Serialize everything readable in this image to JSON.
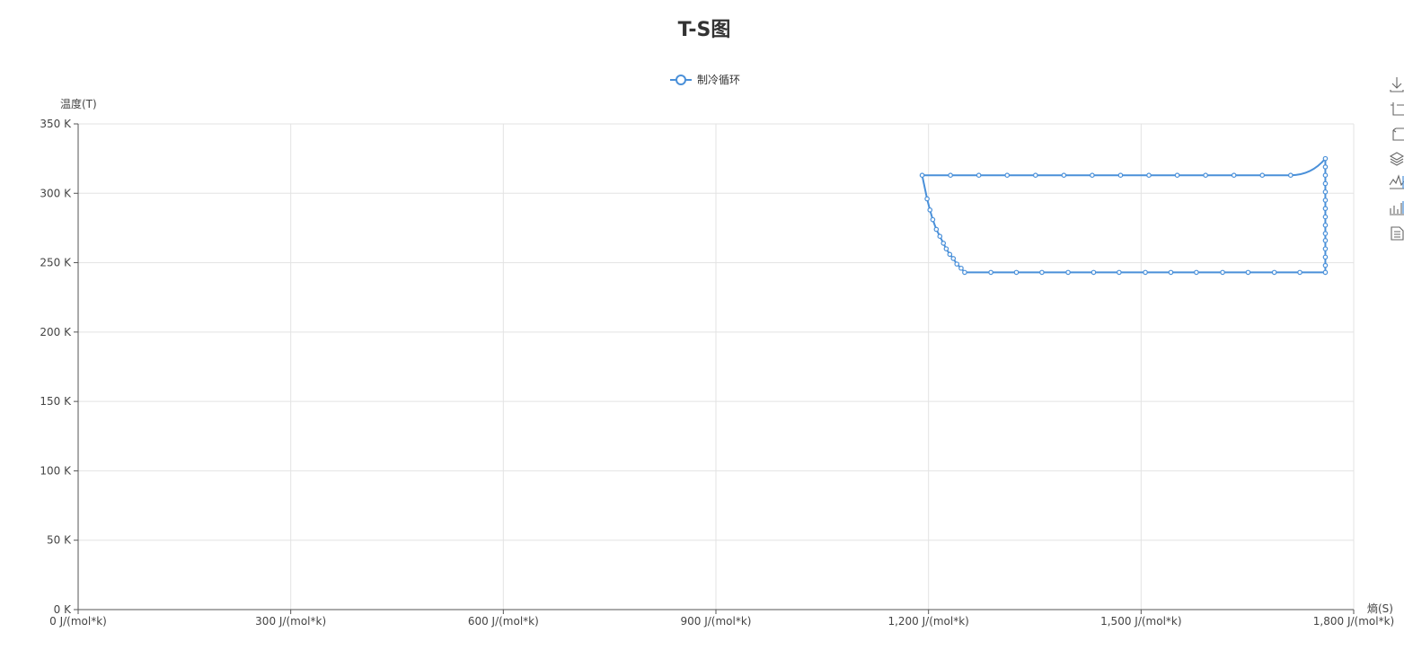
{
  "chart_data": {
    "type": "line",
    "title": "T-S图",
    "xlabel": "熵(S)",
    "ylabel": "温度(T)",
    "xlim": [
      0,
      1800
    ],
    "ylim": [
      0,
      350
    ],
    "x_ticks": [
      0,
      300,
      600,
      900,
      1200,
      1500,
      1800
    ],
    "y_ticks": [
      0,
      50,
      100,
      150,
      200,
      250,
      300,
      350
    ],
    "x_tick_labels": [
      "0 J/(mol*k)",
      "300 J/(mol*k)",
      "600 J/(mol*k)",
      "900 J/(mol*k)",
      "1,200 J/(mol*k)",
      "1,500 J/(mol*k)",
      "1,800 J/(mol*k)"
    ],
    "y_tick_labels": [
      "0 K",
      "50 K",
      "100 K",
      "150 K",
      "200 K",
      "250 K",
      "300 K",
      "350 K"
    ],
    "grid": true,
    "legend_position": "top-center",
    "series": [
      {
        "name": "制冷循环",
        "color": "#4a90d9",
        "points": [
          [
            1760,
            325
          ],
          [
            1760,
            319
          ],
          [
            1760,
            313
          ],
          [
            1760,
            307
          ],
          [
            1760,
            301
          ],
          [
            1760,
            295
          ],
          [
            1760,
            289
          ],
          [
            1760,
            283
          ],
          [
            1760,
            277
          ],
          [
            1760,
            271
          ],
          [
            1760,
            266
          ],
          [
            1760,
            260
          ],
          [
            1760,
            254
          ],
          [
            1760,
            248
          ],
          [
            1760,
            243
          ],
          [
            1724,
            243
          ],
          [
            1688,
            243
          ],
          [
            1651,
            243
          ],
          [
            1615,
            243
          ],
          [
            1578,
            243
          ],
          [
            1542,
            243
          ],
          [
            1506,
            243
          ],
          [
            1469,
            243
          ],
          [
            1433,
            243
          ],
          [
            1397,
            243
          ],
          [
            1360,
            243
          ],
          [
            1324,
            243
          ],
          [
            1288,
            243
          ],
          [
            1251,
            243
          ],
          [
            1246,
            246
          ],
          [
            1240,
            249
          ],
          [
            1235,
            253
          ],
          [
            1230,
            256
          ],
          [
            1225,
            260
          ],
          [
            1221,
            264
          ],
          [
            1216,
            269
          ],
          [
            1211,
            274
          ],
          [
            1206,
            281
          ],
          [
            1202,
            288
          ],
          [
            1198,
            296
          ],
          [
            1191,
            313
          ],
          [
            1231,
            313
          ],
          [
            1271,
            313
          ],
          [
            1311,
            313
          ],
          [
            1351,
            313
          ],
          [
            1391,
            313
          ],
          [
            1431,
            313
          ],
          [
            1471,
            313
          ],
          [
            1511,
            313
          ],
          [
            1551,
            313
          ],
          [
            1591,
            313
          ],
          [
            1631,
            313
          ],
          [
            1671,
            313
          ],
          [
            1711,
            313
          ],
          [
            1760,
            325
          ]
        ],
        "marker_indices": [
          0,
          1,
          2,
          3,
          4,
          5,
          6,
          7,
          8,
          9,
          10,
          11,
          12,
          13,
          14,
          15,
          16,
          17,
          18,
          19,
          20,
          21,
          22,
          23,
          24,
          25,
          26,
          27,
          28,
          29,
          30,
          31,
          32,
          33,
          34,
          35,
          36,
          37,
          38,
          39,
          40,
          41,
          42,
          43,
          44,
          45,
          46,
          47,
          48,
          49,
          50,
          51,
          52,
          53
        ]
      }
    ]
  },
  "toolbox": {
    "icons": [
      "download-icon",
      "zoom-icon",
      "zoom-reset-icon",
      "restore-icon",
      "line-chart-icon",
      "bar-chart-icon",
      "data-view-icon"
    ]
  }
}
